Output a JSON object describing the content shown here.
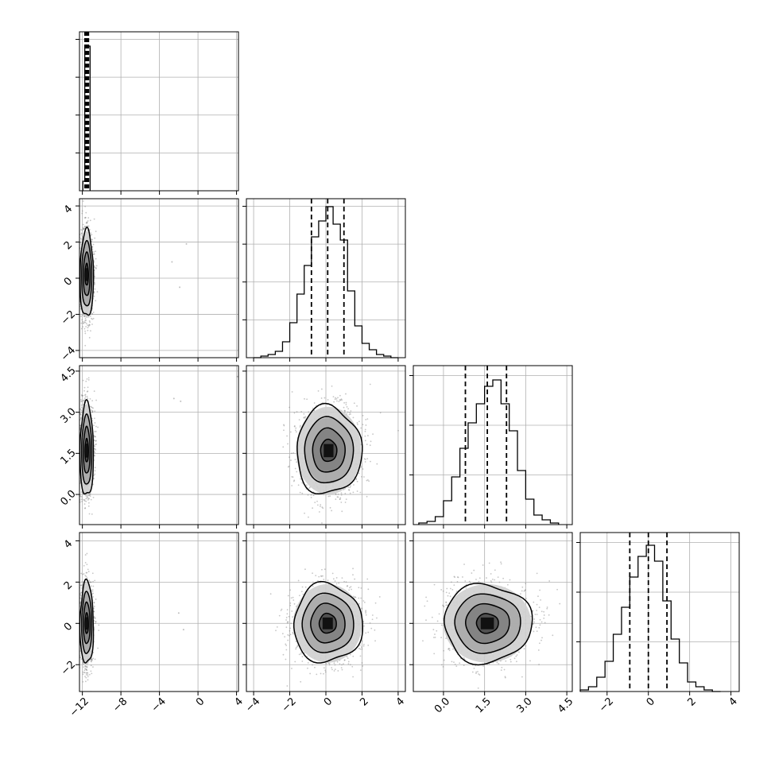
{
  "chart_data": {
    "type": "corner",
    "n_params": 4,
    "grid": true,
    "colors": {
      "line": "#000000",
      "grid": "#b0b0b0",
      "scatter": "#808080"
    },
    "x_ticks": [
      {
        "values": [
          -12,
          -8,
          -4,
          0,
          4
        ],
        "labels": [
          "−12",
          "−8",
          "−4",
          "0",
          "4"
        ]
      },
      {
        "values": [
          -4,
          -2,
          0,
          2,
          4
        ],
        "labels": [
          "−4",
          "−2",
          "0",
          "2",
          "4"
        ]
      },
      {
        "values": [
          0.0,
          1.5,
          3.0,
          4.5
        ],
        "labels": [
          "0.0",
          "1.5",
          "3.0",
          "4.5"
        ]
      },
      {
        "values": [
          -2,
          0,
          2,
          4
        ],
        "labels": [
          "−2",
          "0",
          "2",
          "4"
        ]
      }
    ],
    "y_ticks": [
      null,
      {
        "values": [
          -4,
          -2,
          0,
          2,
          4
        ],
        "labels": [
          "−4",
          "−2",
          "0",
          "2",
          "4"
        ]
      },
      {
        "values": [
          0.0,
          1.5,
          3.0,
          4.5
        ],
        "labels": [
          "0.0",
          "1.5",
          "3.0",
          "4.5"
        ]
      },
      {
        "values": [
          -2,
          0,
          2,
          4
        ],
        "labels": [
          "−2",
          "0",
          "2",
          "4"
        ]
      }
    ],
    "ranges": [
      [
        -12.3,
        4.2
      ],
      [
        -4.4,
        4.4
      ],
      [
        -1.1,
        4.7
      ],
      [
        -3.3,
        4.4
      ]
    ],
    "quantiles": [
      [
        -11.6,
        -11.55,
        -11.5
      ],
      [
        -0.8,
        0.1,
        1.0
      ],
      [
        0.8,
        1.6,
        2.3
      ],
      [
        -0.9,
        0.0,
        0.9
      ]
    ],
    "histograms": [
      {
        "bin_edges": [
          -11.95,
          -11.75,
          -11.2
        ],
        "counts": [
          0.06,
          0.91
        ]
      },
      {
        "bin_edges": [
          -4.0,
          -3.6,
          -3.2,
          -2.8,
          -2.4,
          -2.0,
          -1.6,
          -1.2,
          -0.8,
          -0.4,
          0.0,
          0.4,
          0.8,
          1.2,
          1.6,
          2.0,
          2.4,
          2.8,
          3.2,
          3.6,
          4.0
        ],
        "counts": [
          0.0,
          0.01,
          0.02,
          0.04,
          0.1,
          0.22,
          0.4,
          0.58,
          0.76,
          0.86,
          0.95,
          0.84,
          0.74,
          0.42,
          0.2,
          0.09,
          0.05,
          0.02,
          0.01,
          0.0
        ]
      },
      {
        "bin_edges": [
          -0.9,
          -0.6,
          -0.3,
          0.0,
          0.3,
          0.6,
          0.9,
          1.2,
          1.5,
          1.8,
          2.1,
          2.4,
          2.7,
          3.0,
          3.3,
          3.6,
          3.9,
          4.2
        ],
        "counts": [
          0.01,
          0.02,
          0.05,
          0.15,
          0.3,
          0.48,
          0.64,
          0.76,
          0.87,
          0.91,
          0.76,
          0.59,
          0.34,
          0.16,
          0.06,
          0.03,
          0.01
        ]
      },
      {
        "bin_edges": [
          -3.3,
          -2.9,
          -2.5,
          -2.1,
          -1.7,
          -1.3,
          -0.9,
          -0.5,
          -0.1,
          0.3,
          0.7,
          1.1,
          1.5,
          1.9,
          2.3,
          2.7,
          3.1,
          3.5
        ],
        "counts": [
          0.01,
          0.03,
          0.09,
          0.19,
          0.36,
          0.53,
          0.72,
          0.85,
          0.92,
          0.82,
          0.57,
          0.33,
          0.18,
          0.06,
          0.03,
          0.01,
          0.0
        ]
      }
    ],
    "pairs": [
      {
        "row": 1,
        "col": 0,
        "center": [
          -11.55,
          0.2
        ],
        "spread": [
          0.35,
          1.2
        ],
        "outliers": [
          [
            -1.9,
            -0.5
          ],
          [
            -2.7,
            0.9
          ],
          [
            -1.2,
            1.9
          ]
        ]
      },
      {
        "row": 2,
        "col": 0,
        "center": [
          -11.55,
          1.6
        ],
        "spread": [
          0.35,
          0.85
        ],
        "outliers": [
          [
            -2.5,
            3.5
          ],
          [
            -1.8,
            3.4
          ],
          [
            4.1,
            4.3
          ]
        ]
      },
      {
        "row": 2,
        "col": 1,
        "center": [
          0.15,
          1.6
        ],
        "spread": [
          0.9,
          0.8
        ],
        "outliers": []
      },
      {
        "row": 3,
        "col": 0,
        "center": [
          -11.55,
          0.0
        ],
        "spread": [
          0.35,
          1.0
        ],
        "outliers": [
          [
            -2.0,
            0.5
          ],
          [
            -1.5,
            -0.3
          ]
        ]
      },
      {
        "row": 3,
        "col": 1,
        "center": [
          0.1,
          0.0
        ],
        "spread": [
          0.95,
          0.95
        ],
        "outliers": []
      },
      {
        "row": 3,
        "col": 2,
        "center": [
          1.6,
          0.0
        ],
        "spread": [
          0.8,
          0.95
        ],
        "outliers": []
      }
    ],
    "contour_sigmas": [
      0.5,
      1.0,
      1.5,
      2.0
    ]
  }
}
